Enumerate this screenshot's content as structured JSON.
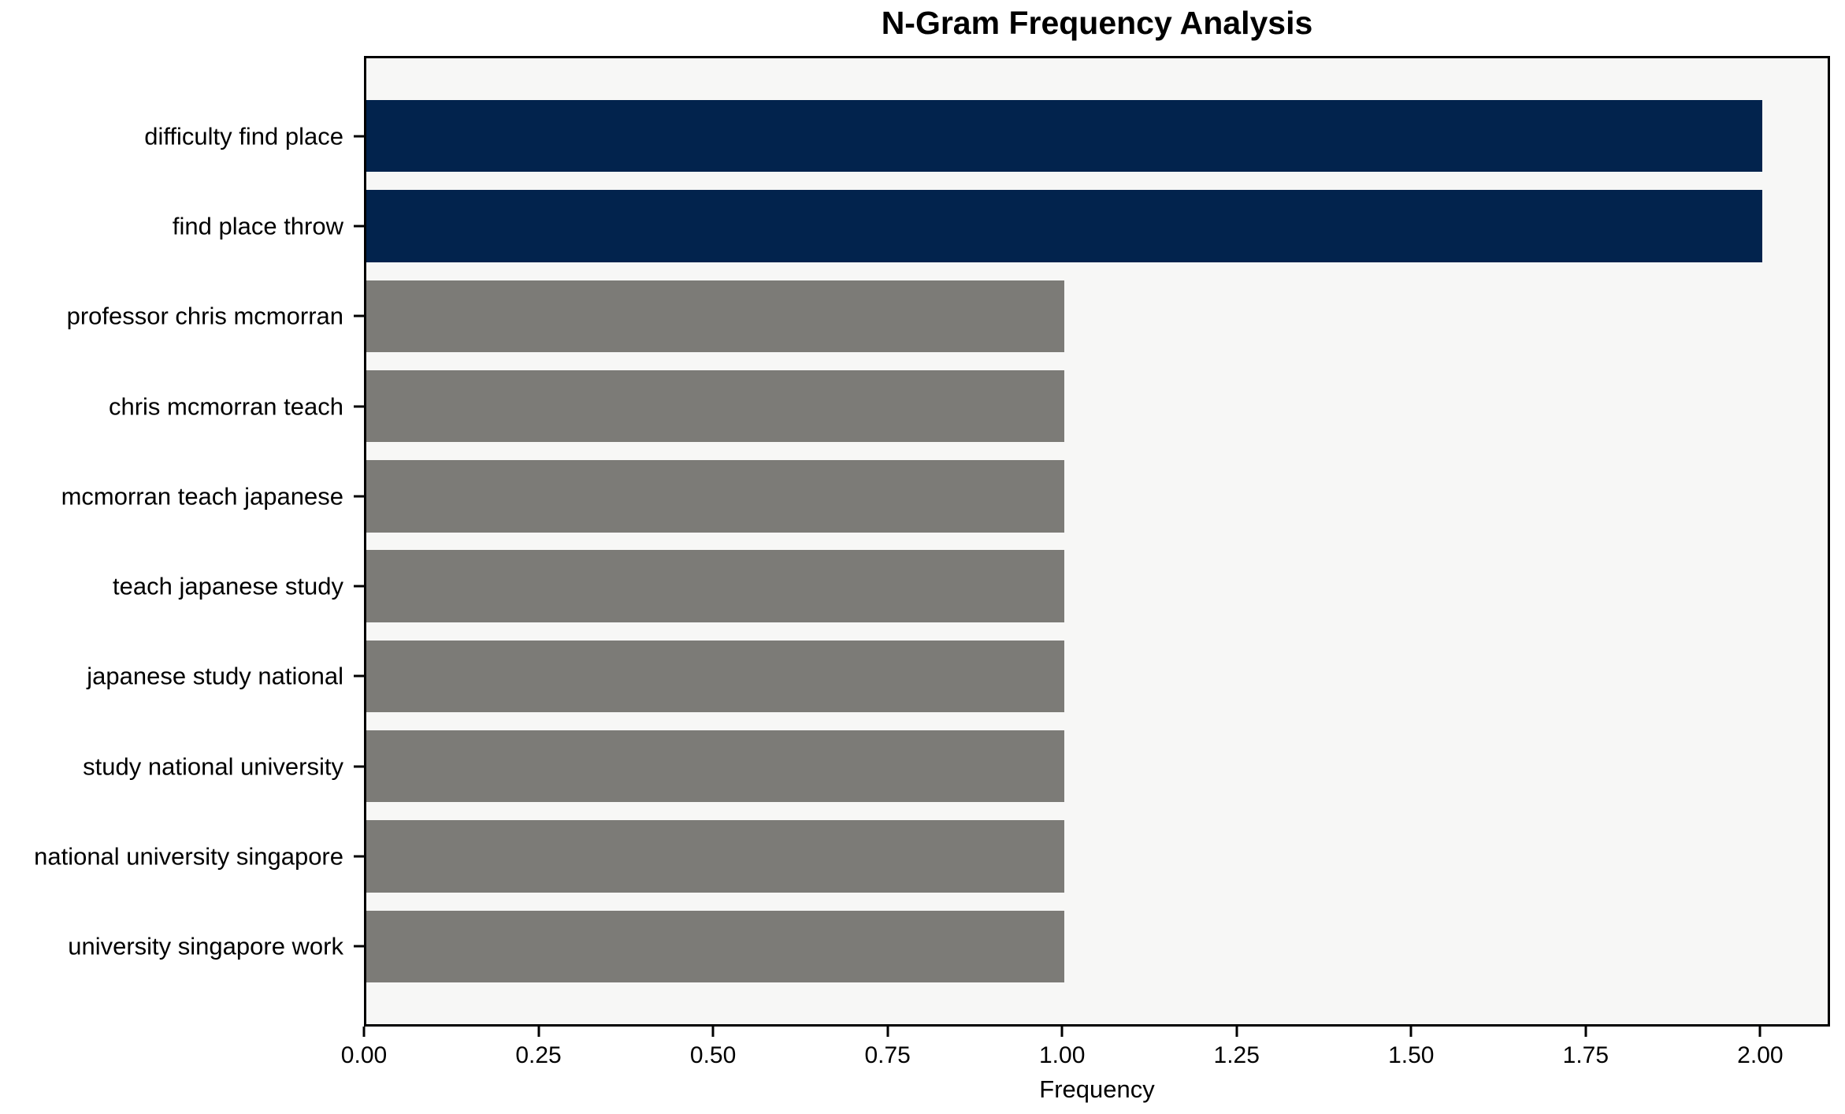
{
  "chart_data": {
    "type": "bar",
    "orientation": "horizontal",
    "title": "N-Gram Frequency Analysis",
    "xlabel": "Frequency",
    "ylabel": "",
    "categories": [
      "difficulty find place",
      "find place throw",
      "professor chris mcmorran",
      "chris mcmorran teach",
      "mcmorran teach japanese",
      "teach japanese study",
      "japanese study national",
      "study national university",
      "national university singapore",
      "university singapore work"
    ],
    "values": [
      2,
      2,
      1,
      1,
      1,
      1,
      1,
      1,
      1,
      1
    ],
    "bar_colors": [
      "#02234d",
      "#02234d",
      "#7c7b77",
      "#7c7b77",
      "#7c7b77",
      "#7c7b77",
      "#7c7b77",
      "#7c7b77",
      "#7c7b77",
      "#7c7b77"
    ],
    "xlim": [
      0,
      2.1
    ],
    "xticks": [
      {
        "value": 0.0,
        "label": "0.00"
      },
      {
        "value": 0.25,
        "label": "0.25"
      },
      {
        "value": 0.5,
        "label": "0.50"
      },
      {
        "value": 0.75,
        "label": "0.75"
      },
      {
        "value": 1.0,
        "label": "1.00"
      },
      {
        "value": 1.25,
        "label": "1.25"
      },
      {
        "value": 1.5,
        "label": "1.50"
      },
      {
        "value": 1.75,
        "label": "1.75"
      },
      {
        "value": 2.0,
        "label": "2.00"
      }
    ],
    "grid": false,
    "legend": false,
    "colors": {
      "highlight_bar": "#02234d",
      "regular_bar": "#7c7b77",
      "plot_background": "#f7f7f6",
      "spine": "#000000",
      "text": "#000000"
    }
  }
}
